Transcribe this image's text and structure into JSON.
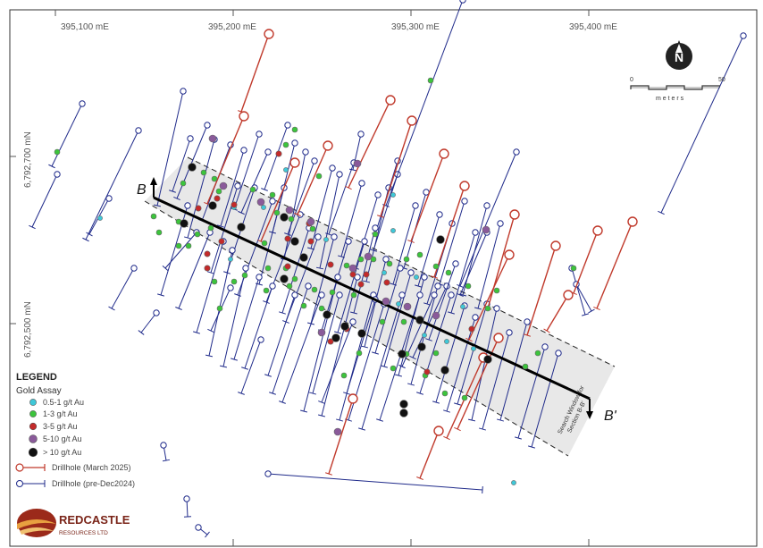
{
  "map": {
    "easting_labels": [
      "395,100 mE",
      "395,200 mE",
      "395,300 mE",
      "395,400 mE"
    ],
    "northing_labels": [
      "6,792,700 mN",
      "6,792,500 mN"
    ],
    "north_arrow_letter": "N",
    "scale_bar": {
      "start": "0",
      "end": "50",
      "unit": "m e t e r s"
    },
    "section_start_label": "B",
    "section_end_label": "B'",
    "section_window_label_1": "Search Window for",
    "section_window_label_2": "Section B-B'",
    "colors": {
      "drillhole_2025": "#c0392b",
      "drillhole_pre2024": "#1f2a8a",
      "assay_0_5_1": "#3fc8d8",
      "assay_1_3": "#3cc43c",
      "assay_3_5": "#c42a2a",
      "assay_5_10": "#8a5a9a",
      "assay_gt_10": "#111111",
      "section_window": "#e8e8e8"
    }
  },
  "legend": {
    "title": "LEGEND",
    "subtitle": "Gold Assay",
    "assay_items": [
      {
        "label": "0.5-1 g/t Au",
        "color": "#3fc8d8"
      },
      {
        "label": "1-3 g/t Au",
        "color": "#3cc43c"
      },
      {
        "label": "3-5 g/t Au",
        "color": "#c42a2a"
      },
      {
        "label": "5-10 g/t Au",
        "color": "#8a5a9a"
      },
      {
        "label": "> 10 g/t Au",
        "color": "#111111"
      }
    ],
    "drillhole_items": [
      {
        "label": "Drillhole (March 2025)",
        "color": "#c0392b"
      },
      {
        "label": "Drillhole (pre-Dec2024)",
        "color": "#1f2a8a"
      }
    ]
  },
  "logo": {
    "name": "REDCASTLE",
    "sub": "RESOURCES LTD"
  }
}
